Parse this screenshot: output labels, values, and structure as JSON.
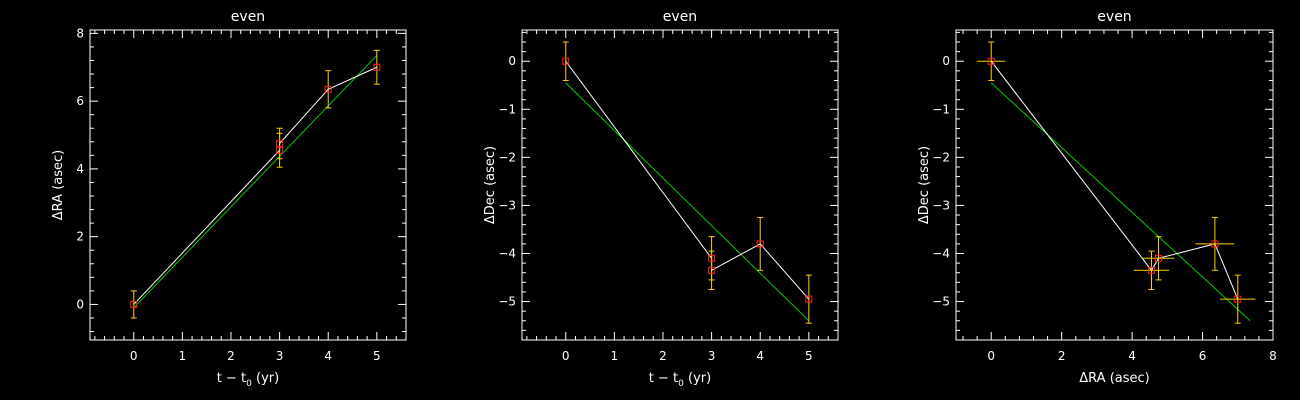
{
  "colors": {
    "background": "#000000",
    "axes": "#ffffff",
    "data_line": "#ffffff",
    "fit_line": "#00cc00",
    "markers": "#ff2020",
    "error_bars": "#ffd000"
  },
  "chart_data": [
    {
      "type": "scatter",
      "title": "even",
      "xlabel": {
        "prefix": "t − t",
        "sub": "0",
        "suffix": " (yr)"
      },
      "ylabel": "ΔRA (asec)",
      "xlim": [
        -0.9,
        5.6
      ],
      "ylim": [
        -1.05,
        8.1
      ],
      "xticks": [
        0,
        1,
        2,
        3,
        4,
        5
      ],
      "yticks": [
        0,
        2,
        4,
        6,
        8
      ],
      "tick_labels_x": [
        "0",
        "1",
        "2",
        "3",
        "4",
        "5"
      ],
      "tick_labels_y": [
        "0",
        "2",
        "4",
        "6",
        "8"
      ],
      "grid": false,
      "points": [
        {
          "x": 0,
          "y": 0.0,
          "yerr": 0.4,
          "xerr": 0
        },
        {
          "x": 3,
          "y": 4.55,
          "yerr": 0.5,
          "xerr": 0
        },
        {
          "x": 3,
          "y": 4.75,
          "yerr": 0.45,
          "xerr": 0
        },
        {
          "x": 4,
          "y": 6.35,
          "yerr": 0.55,
          "xerr": 0
        },
        {
          "x": 5,
          "y": 7.0,
          "yerr": 0.5,
          "xerr": 0
        }
      ],
      "fit": [
        [
          0.0,
          -0.1
        ],
        [
          5.0,
          7.35
        ]
      ]
    },
    {
      "type": "scatter",
      "title": "even",
      "xlabel": {
        "prefix": "t − t",
        "sub": "0",
        "suffix": " (yr)"
      },
      "ylabel": "ΔDec (asec)",
      "xlim": [
        -0.9,
        5.6
      ],
      "ylim": [
        -5.8,
        0.65
      ],
      "xticks": [
        0,
        1,
        2,
        3,
        4,
        5
      ],
      "yticks": [
        -5,
        -4,
        -3,
        -2,
        -1,
        0
      ],
      "tick_labels_x": [
        "0",
        "1",
        "2",
        "3",
        "4",
        "5"
      ],
      "tick_labels_y": [
        "−5",
        "−4",
        "−3",
        "−2",
        "−1",
        "0"
      ],
      "grid": false,
      "points": [
        {
          "x": 0,
          "y": 0.0,
          "yerr": 0.4,
          "xerr": 0
        },
        {
          "x": 3,
          "y": -4.1,
          "yerr": 0.45,
          "xerr": 0
        },
        {
          "x": 3,
          "y": -4.35,
          "yerr": 0.4,
          "xerr": 0
        },
        {
          "x": 4,
          "y": -3.8,
          "yerr": 0.55,
          "xerr": 0
        },
        {
          "x": 5,
          "y": -4.95,
          "yerr": 0.5,
          "xerr": 0
        }
      ],
      "fit": [
        [
          0.0,
          -0.45
        ],
        [
          5.0,
          -5.4
        ]
      ]
    },
    {
      "type": "scatter",
      "title": "even",
      "xlabel": {
        "prefix": "ΔRA (asec)",
        "sub": "",
        "suffix": ""
      },
      "ylabel": "ΔDec (asec)",
      "xlim": [
        -1.0,
        8.0
      ],
      "ylim": [
        -5.8,
        0.65
      ],
      "xticks": [
        0,
        2,
        4,
        6,
        8
      ],
      "yticks": [
        -5,
        -4,
        -3,
        -2,
        -1,
        0
      ],
      "tick_labels_x": [
        "0",
        "2",
        "4",
        "6",
        "8"
      ],
      "tick_labels_y": [
        "−5",
        "−4",
        "−3",
        "−2",
        "−1",
        "0"
      ],
      "grid": false,
      "points": [
        {
          "x": 0.0,
          "y": 0.0,
          "yerr": 0.4,
          "xerr": 0.4
        },
        {
          "x": 4.55,
          "y": -4.35,
          "yerr": 0.4,
          "xerr": 0.5
        },
        {
          "x": 4.75,
          "y": -4.1,
          "yerr": 0.45,
          "xerr": 0.45
        },
        {
          "x": 6.35,
          "y": -3.8,
          "yerr": 0.55,
          "xerr": 0.55
        },
        {
          "x": 7.0,
          "y": -4.95,
          "yerr": 0.5,
          "xerr": 0.5
        }
      ],
      "fit": [
        [
          0.0,
          -0.45
        ],
        [
          7.35,
          -5.4
        ]
      ]
    }
  ]
}
